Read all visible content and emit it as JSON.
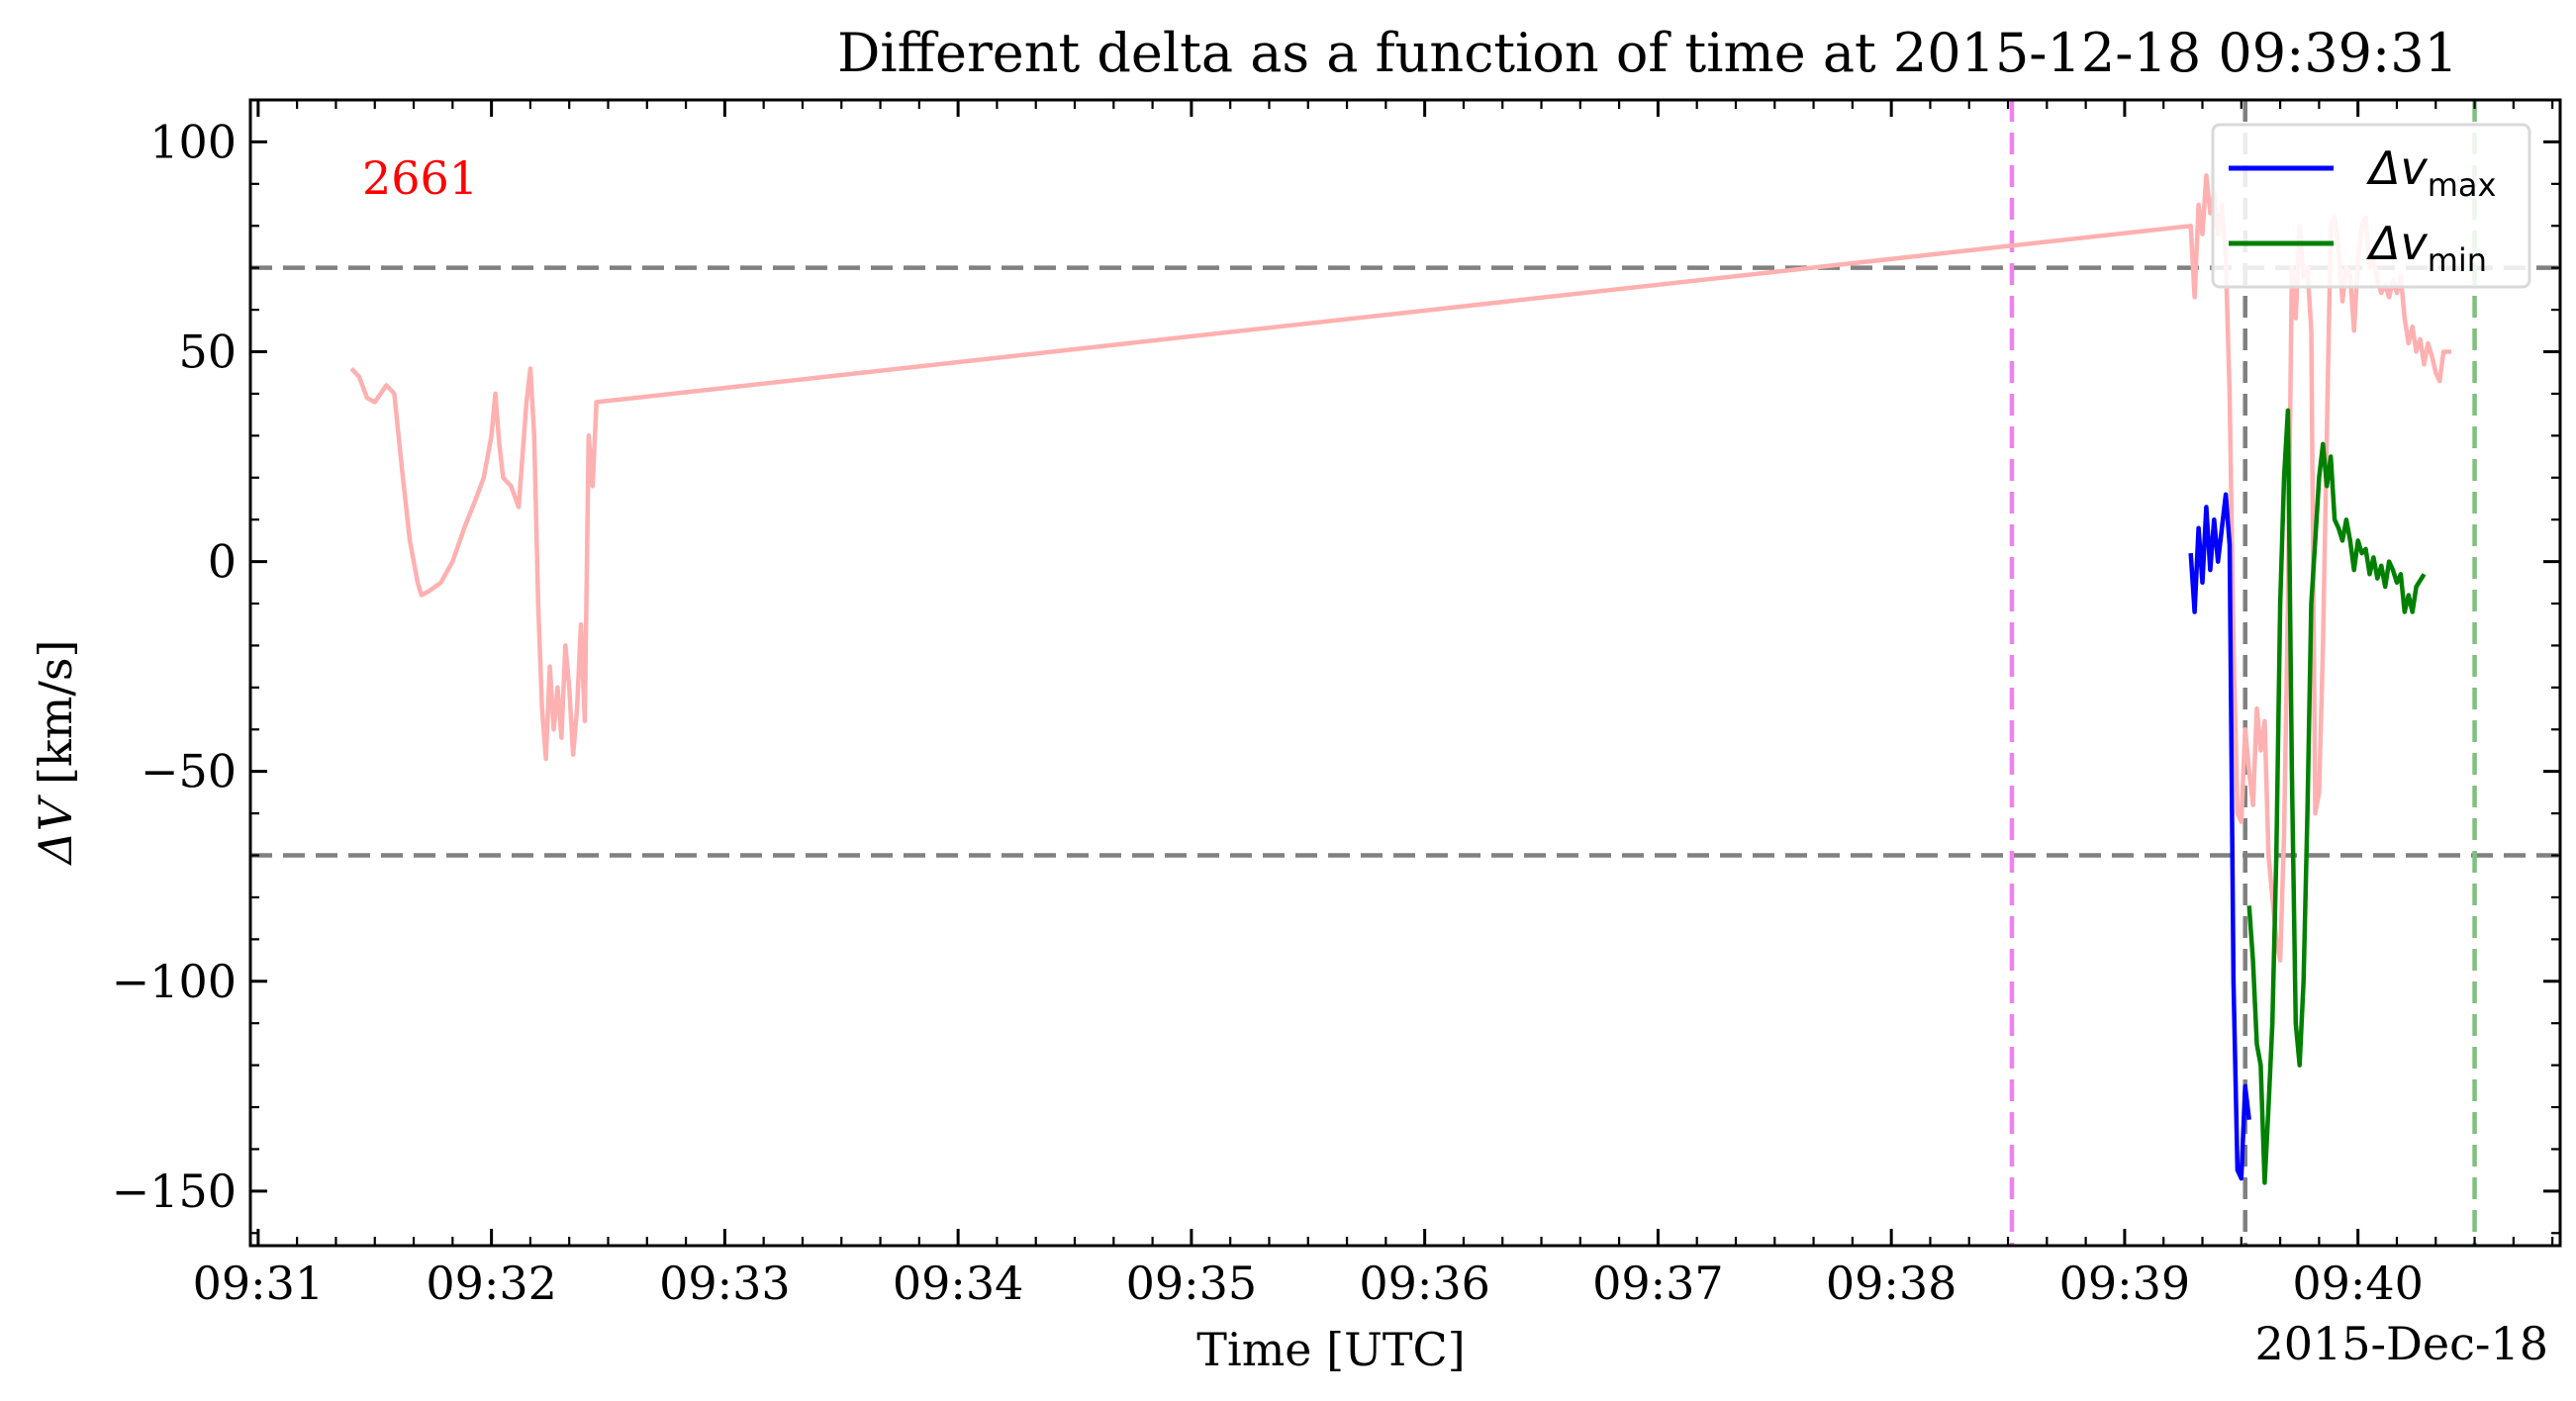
{
  "chart_data": {
    "type": "line",
    "title": "Different delta as a function of time at 2015-12-18 09:39:31",
    "xlabel": "Time [UTC]",
    "ylabel_symbol": "ΔV",
    "ylabel_unit": "[km/s]",
    "x_offset_label": "2015-Dec-18",
    "xlim": [
      "09:30:58",
      "09:40:52"
    ],
    "ylim": [
      -163,
      110
    ],
    "x_ticks": [
      "09:31",
      "09:32",
      "09:33",
      "09:34",
      "09:35",
      "09:36",
      "09:37",
      "09:38",
      "09:39",
      "09:40"
    ],
    "y_ticks": [
      100,
      50,
      0,
      -50,
      -100,
      -150
    ],
    "y_tick_labels": [
      "100",
      "50",
      "0",
      "−50",
      "−100",
      "−150"
    ],
    "annotation": {
      "text": "2661",
      "color": "#ff0000"
    },
    "legend": {
      "placement": "top-right",
      "entries": [
        {
          "series": "dv_max",
          "base": "Δv",
          "sub": "max",
          "color": "#0000ff"
        },
        {
          "series": "dv_min",
          "base": "Δv",
          "sub": "min",
          "color": "#008000"
        }
      ]
    },
    "hlines": [
      {
        "y": 70,
        "color": "#808080"
      },
      {
        "y": -70,
        "color": "#808080"
      }
    ],
    "vlines": [
      {
        "x": "09:38:31",
        "color": "#ee82ee"
      },
      {
        "x": "09:39:31",
        "color": "#808080"
      },
      {
        "x": "09:40:30",
        "color": "#7fbf7f"
      }
    ],
    "series": [
      {
        "id": "delta",
        "color": "#ffb0b0",
        "points": [
          [
            "09:31:24",
            46
          ],
          [
            "09:31:26",
            44
          ],
          [
            "09:31:28",
            39
          ],
          [
            "09:31:30",
            38
          ],
          [
            "09:31:33",
            42
          ],
          [
            "09:31:35",
            40
          ],
          [
            "09:31:37",
            22
          ],
          [
            "09:31:39",
            5
          ],
          [
            "09:31:41",
            -5
          ],
          [
            "09:31:42",
            -8
          ],
          [
            "09:31:44",
            -7
          ],
          [
            "09:31:47",
            -5
          ],
          [
            "09:31:50",
            0
          ],
          [
            "09:31:53",
            8
          ],
          [
            "09:31:56",
            15
          ],
          [
            "09:31:58",
            20
          ],
          [
            "09:32:00",
            30
          ],
          [
            "09:32:01",
            40
          ],
          [
            "09:32:02",
            28
          ],
          [
            "09:32:03",
            20
          ],
          [
            "09:32:05",
            18
          ],
          [
            "09:32:07",
            13
          ],
          [
            "09:32:09",
            38
          ],
          [
            "09:32:10",
            46
          ],
          [
            "09:32:11",
            30
          ],
          [
            "09:32:12",
            -10
          ],
          [
            "09:32:13",
            -35
          ],
          [
            "09:32:14",
            -47
          ],
          [
            "09:32:15",
            -25
          ],
          [
            "09:32:16",
            -40
          ],
          [
            "09:32:17",
            -30
          ],
          [
            "09:32:18",
            -42
          ],
          [
            "09:32:19",
            -20
          ],
          [
            "09:32:20",
            -30
          ],
          [
            "09:32:21",
            -46
          ],
          [
            "09:32:22",
            -35
          ],
          [
            "09:32:23",
            -15
          ],
          [
            "09:32:24",
            -38
          ],
          [
            "09:32:25",
            30
          ],
          [
            "09:32:26",
            18
          ],
          [
            "09:32:27",
            38
          ],
          [
            "09:39:17",
            80
          ],
          [
            "09:39:18",
            63
          ],
          [
            "09:39:19",
            85
          ],
          [
            "09:39:20",
            78
          ],
          [
            "09:39:21",
            92
          ],
          [
            "09:39:22",
            83
          ],
          [
            "09:39:23",
            88
          ],
          [
            "09:39:24",
            78
          ],
          [
            "09:39:25",
            85
          ],
          [
            "09:39:26",
            72
          ],
          [
            "09:39:27",
            40
          ],
          [
            "09:39:28",
            -20
          ],
          [
            "09:39:29",
            -60
          ],
          [
            "09:39:30",
            -62
          ],
          [
            "09:39:31",
            -40
          ],
          [
            "09:39:32",
            -50
          ],
          [
            "09:39:33",
            -58
          ],
          [
            "09:39:34",
            -35
          ],
          [
            "09:39:35",
            -45
          ],
          [
            "09:39:36",
            -38
          ],
          [
            "09:39:37",
            -70
          ],
          [
            "09:39:38",
            -80
          ],
          [
            "09:39:39",
            -90
          ],
          [
            "09:39:40",
            -95
          ],
          [
            "09:39:41",
            -65
          ],
          [
            "09:39:42",
            -10
          ],
          [
            "09:39:43",
            70
          ],
          [
            "09:39:44",
            58
          ],
          [
            "09:39:45",
            80
          ],
          [
            "09:39:46",
            68
          ],
          [
            "09:39:47",
            70
          ],
          [
            "09:39:48",
            55
          ],
          [
            "09:39:49",
            -60
          ],
          [
            "09:39:50",
            -55
          ],
          [
            "09:39:51",
            -20
          ],
          [
            "09:39:52",
            30
          ],
          [
            "09:39:53",
            80
          ],
          [
            "09:39:54",
            82
          ],
          [
            "09:39:55",
            75
          ],
          [
            "09:39:56",
            62
          ],
          [
            "09:39:57",
            70
          ],
          [
            "09:39:58",
            68
          ],
          [
            "09:39:59",
            55
          ],
          [
            "09:40:00",
            72
          ],
          [
            "09:40:01",
            80
          ],
          [
            "09:40:02",
            82
          ],
          [
            "09:40:03",
            70
          ],
          [
            "09:40:04",
            72
          ],
          [
            "09:40:05",
            67
          ],
          [
            "09:40:06",
            64
          ],
          [
            "09:40:07",
            66
          ],
          [
            "09:40:08",
            63
          ],
          [
            "09:40:09",
            67
          ],
          [
            "09:40:10",
            64
          ],
          [
            "09:40:11",
            68
          ],
          [
            "09:40:12",
            58
          ],
          [
            "09:40:13",
            52
          ],
          [
            "09:40:14",
            56
          ],
          [
            "09:40:15",
            50
          ],
          [
            "09:40:16",
            53
          ],
          [
            "09:40:17",
            47
          ],
          [
            "09:40:18",
            52
          ],
          [
            "09:40:19",
            49
          ],
          [
            "09:40:20",
            45
          ],
          [
            "09:40:21",
            43
          ],
          [
            "09:40:22",
            50
          ],
          [
            "09:40:24",
            50
          ]
        ]
      },
      {
        "id": "dv_max",
        "color": "#0000ff",
        "points": [
          [
            "09:39:17",
            2
          ],
          [
            "09:39:18",
            -12
          ],
          [
            "09:39:19",
            8
          ],
          [
            "09:39:20",
            -5
          ],
          [
            "09:39:21",
            13
          ],
          [
            "09:39:22",
            -2
          ],
          [
            "09:39:23",
            10
          ],
          [
            "09:39:24",
            0
          ],
          [
            "09:39:25",
            8
          ],
          [
            "09:39:26",
            16
          ],
          [
            "09:39:27",
            4
          ],
          [
            "09:39:28",
            -100
          ],
          [
            "09:39:29",
            -145
          ],
          [
            "09:39:30",
            -147
          ],
          [
            "09:39:31",
            -125
          ],
          [
            "09:39:32",
            -133
          ]
        ]
      },
      {
        "id": "dv_min",
        "color": "#008000",
        "points": [
          [
            "09:39:32",
            -82
          ],
          [
            "09:39:33",
            -95
          ],
          [
            "09:39:34",
            -115
          ],
          [
            "09:39:35",
            -120
          ],
          [
            "09:39:36",
            -148
          ],
          [
            "09:39:37",
            -130
          ],
          [
            "09:39:38",
            -110
          ],
          [
            "09:39:39",
            -70
          ],
          [
            "09:39:40",
            -10
          ],
          [
            "09:39:41",
            20
          ],
          [
            "09:39:42",
            36
          ],
          [
            "09:39:43",
            -50
          ],
          [
            "09:39:44",
            -110
          ],
          [
            "09:39:45",
            -120
          ],
          [
            "09:39:46",
            -100
          ],
          [
            "09:39:47",
            -60
          ],
          [
            "09:39:48",
            -10
          ],
          [
            "09:39:49",
            5
          ],
          [
            "09:39:50",
            20
          ],
          [
            "09:39:51",
            28
          ],
          [
            "09:39:52",
            18
          ],
          [
            "09:39:53",
            25
          ],
          [
            "09:39:54",
            10
          ],
          [
            "09:39:55",
            8
          ],
          [
            "09:39:56",
            5
          ],
          [
            "09:39:57",
            10
          ],
          [
            "09:39:58",
            5
          ],
          [
            "09:39:59",
            -2
          ],
          [
            "09:40:00",
            5
          ],
          [
            "09:40:01",
            2
          ],
          [
            "09:40:02",
            3
          ],
          [
            "09:40:03",
            -3
          ],
          [
            "09:40:04",
            1
          ],
          [
            "09:40:05",
            -4
          ],
          [
            "09:40:06",
            -1
          ],
          [
            "09:40:07",
            -6
          ],
          [
            "09:40:08",
            0
          ],
          [
            "09:40:09",
            -2
          ],
          [
            "09:40:10",
            -5
          ],
          [
            "09:40:11",
            -3
          ],
          [
            "09:40:12",
            -12
          ],
          [
            "09:40:13",
            -8
          ],
          [
            "09:40:14",
            -12
          ],
          [
            "09:40:15",
            -6
          ],
          [
            "09:40:17",
            -3
          ]
        ]
      }
    ]
  }
}
